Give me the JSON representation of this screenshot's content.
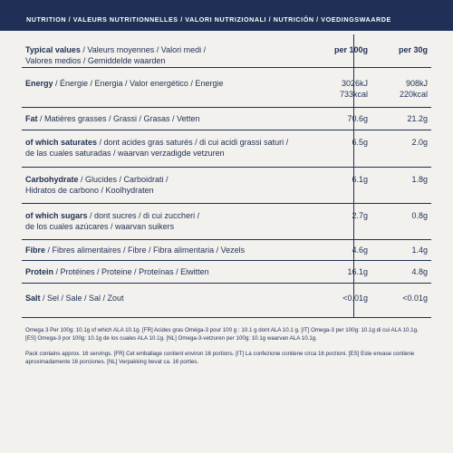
{
  "header": {
    "title": "NUTRITION / VALEURS NUTRITIONNELLES / VALORI NUTRIZIONALI / NUTRICIÓN / VOEDINGSWAARDE"
  },
  "table": {
    "heading": {
      "label_bold": "Typical values",
      "label_rest": " / Valeurs moyennes / Valori medi /",
      "label_line2": "Valores medios / Gemiddelde waarden",
      "col1": "per 100g",
      "col2": "per 30g"
    },
    "rows": [
      {
        "label_bold": "Energy",
        "label_rest": " / Énergie / Energia / Valor energético / Energie",
        "label_line2": "",
        "v1": "3026kJ",
        "v1b": "733kcal",
        "v2": "908kJ",
        "v2b": "220kcal"
      },
      {
        "label_bold": "Fat",
        "label_rest": " / Matières grasses / Grassi / Grasas / Vetten",
        "label_line2": "",
        "v1": "70.6g",
        "v2": "21.2g"
      },
      {
        "label_bold": "of which saturates",
        "label_rest": " / dont acides gras saturés / di cui acidi grassi saturi /",
        "label_line2": "de las cuales saturadas / waarvan verzadigde vetzuren",
        "v1": "6.5g",
        "v2": "2.0g"
      },
      {
        "label_bold": "Carbohydrate",
        "label_rest": " / Glucides / Carboidrati /",
        "label_line2": "Hidratos de carbono / Koolhydraten",
        "v1": "6.1g",
        "v2": "1.8g"
      },
      {
        "label_bold": "of which sugars",
        "label_rest": " / dont sucres / di cui zuccheri /",
        "label_line2": "de los cuales azúcares / waarvan suikers",
        "v1": "2.7g",
        "v2": "0.8g"
      },
      {
        "label_bold": "Fibre",
        "label_rest": " / Fibres alimentaires / Fibre / Fibra alimentaria / Vezels",
        "label_line2": "",
        "v1": "4.6g",
        "v2": "1.4g"
      },
      {
        "label_bold": "Protein",
        "label_rest": " / Protéines / Proteine / Proteínas / Eiwitten",
        "label_line2": "",
        "v1": "16.1g",
        "v2": "4.8g"
      },
      {
        "label_bold": "Salt",
        "label_rest": " / Sel / Sale / Sal / Zout",
        "label_line2": "",
        "v1": "<0.01g",
        "v2": "<0.01g"
      }
    ]
  },
  "footnotes": {
    "omega": "Omega 3 Per 100g: 10.1g of which ALA 10.1g. [FR] Acides gras Oméga-3 pour 100 g : 10.1 g dont ALA 10.1 g. [IT] Omega-3 per 100g: 10.1g di cui ALA 10.1g. [ES] Omega-3 por 100g: 10.1g de los cuales ALA 10.1g. [NL] Omega-3-vetzuren per 100g: 10.1g waarvan ALA 10.1g.",
    "servings": "Pack contains approx. 16 servings. [FR] Cet emballage contient environ 16 portions. [IT] La confezione contiene circa 16 porzioni. [ES] Este envase contiene aproximadamente 16 porciones. [NL] Verpakking bevat ca. 16 porties."
  }
}
